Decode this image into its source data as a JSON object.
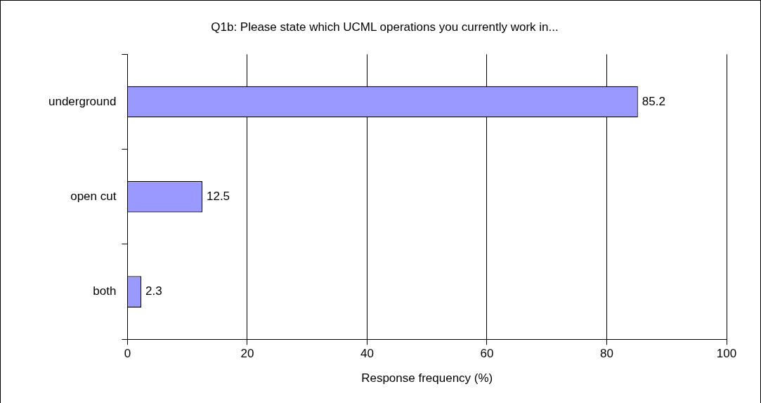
{
  "chart_data": {
    "type": "bar",
    "orientation": "horizontal",
    "title": "Q1b: Please state which UCML operations you currently work in...",
    "xlabel": "Response frequency (%)",
    "categories": [
      "underground",
      "open cut",
      "both"
    ],
    "values": [
      85.2,
      12.5,
      2.3
    ],
    "color": "#9999ff",
    "xlim": [
      0,
      100
    ],
    "xticks": [
      0,
      20,
      40,
      60,
      80,
      100
    ],
    "grid": "x",
    "legend": false,
    "data_labels": true
  }
}
